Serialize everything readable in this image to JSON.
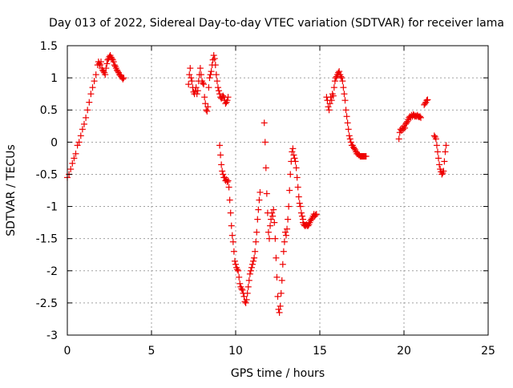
{
  "chart_data": {
    "type": "scatter",
    "title": "Day 013 of 2022, Sidereal Day-to-day VTEC variation (SDTVAR) for receiver lama",
    "xlabel": "GPS time / hours",
    "ylabel": "SDTVAR / TECUs",
    "xlim": [
      0,
      25
    ],
    "ylim": [
      -3,
      1.5
    ],
    "xticks": [
      0,
      5,
      10,
      15,
      20,
      25
    ],
    "xtick_labels": [
      "0",
      "5",
      "10",
      "15",
      "20",
      "25"
    ],
    "yticks": [
      -3,
      -2.5,
      -2,
      -1.5,
      -1,
      -0.5,
      0,
      0.5,
      1,
      1.5
    ],
    "ytick_labels": [
      "-3",
      "-2.5",
      "-2",
      "-1.5",
      "-1",
      "-0.5",
      "0",
      "0.5",
      "1",
      "1.5"
    ],
    "grid": true,
    "marker": "+",
    "marker_color": "#ee0000",
    "series": [
      {
        "name": "SDTVAR",
        "segments": [
          {
            "x": [
              0.0,
              0.1,
              0.2,
              0.3,
              0.4,
              0.5,
              0.6,
              0.7,
              0.8,
              0.9,
              1.0,
              1.1,
              1.2,
              1.3,
              1.4,
              1.5,
              1.6,
              1.7,
              1.8,
              1.85,
              1.9,
              1.95,
              2.0,
              2.05,
              2.1,
              2.15,
              2.2,
              2.25,
              2.3,
              2.35,
              2.4,
              2.45,
              2.5,
              2.55,
              2.6,
              2.65,
              2.7,
              2.75,
              2.8,
              2.85,
              2.9,
              2.95,
              3.0,
              3.05,
              3.1,
              3.15,
              3.2,
              3.25,
              3.3,
              3.35
            ],
            "y": [
              -0.55,
              -0.5,
              -0.42,
              -0.33,
              -0.25,
              -0.18,
              -0.05,
              0.0,
              0.1,
              0.2,
              0.28,
              0.38,
              0.5,
              0.62,
              0.75,
              0.85,
              0.95,
              1.05,
              1.2,
              1.25,
              1.22,
              1.2,
              1.25,
              1.15,
              1.12,
              1.1,
              1.08,
              1.05,
              1.15,
              1.22,
              1.28,
              1.3,
              1.33,
              1.35,
              1.32,
              1.3,
              1.28,
              1.25,
              1.2,
              1.18,
              1.15,
              1.12,
              1.1,
              1.08,
              1.05,
              1.04,
              1.02,
              1.0,
              0.98,
              1.0
            ]
          },
          {
            "x": [
              7.2,
              7.25,
              7.3,
              7.35,
              7.4,
              7.45,
              7.5,
              7.55,
              7.6,
              7.65,
              7.7,
              7.75,
              7.8,
              7.85,
              7.9,
              7.95,
              8.0,
              8.05,
              8.1,
              8.15,
              8.2,
              8.25,
              8.3,
              8.35,
              8.4,
              8.45,
              8.5,
              8.55,
              8.6,
              8.65,
              8.7,
              8.75,
              8.8,
              8.85,
              8.9,
              8.95,
              9.0,
              9.05,
              9.1,
              9.15,
              9.2,
              9.25,
              9.3,
              9.35,
              9.4,
              9.45,
              9.5,
              9.55
            ],
            "y": [
              0.9,
              1.05,
              1.15,
              1.0,
              0.95,
              0.85,
              0.78,
              0.75,
              0.8,
              0.85,
              0.75,
              0.8,
              0.95,
              1.05,
              1.15,
              1.05,
              0.95,
              0.92,
              0.9,
              0.7,
              0.6,
              0.5,
              0.48,
              0.55,
              0.85,
              1.0,
              1.05,
              1.1,
              1.2,
              1.28,
              1.35,
              1.3,
              1.2,
              1.05,
              0.95,
              0.85,
              0.8,
              0.75,
              0.7,
              0.68,
              0.7,
              0.72,
              0.7,
              0.65,
              0.6,
              0.62,
              0.65,
              0.7
            ]
          },
          {
            "x": [
              9.05,
              9.1,
              9.15,
              9.2,
              9.25,
              9.3,
              9.35,
              9.4,
              9.45,
              9.5,
              9.55,
              9.6,
              9.65,
              9.7,
              9.75,
              9.8,
              9.85,
              9.9,
              9.95,
              10.0,
              10.05,
              10.1,
              10.15,
              10.2,
              10.25,
              10.3,
              10.35,
              10.4,
              10.45,
              10.5,
              10.55,
              10.6,
              10.65,
              10.7,
              10.75,
              10.8,
              10.85,
              10.9,
              10.95,
              11.0,
              11.05,
              11.1,
              11.15,
              11.2,
              11.25,
              11.3,
              11.35,
              11.4,
              11.45
            ],
            "y": [
              -0.05,
              -0.2,
              -0.35,
              -0.45,
              -0.5,
              -0.55,
              -0.55,
              -0.6,
              -0.58,
              -0.62,
              -0.6,
              -0.7,
              -0.9,
              -1.1,
              -1.3,
              -1.45,
              -1.55,
              -1.7,
              -1.85,
              -1.9,
              -1.95,
              -1.98,
              -2.0,
              -2.1,
              -2.2,
              -2.25,
              -2.28,
              -2.3,
              -2.35,
              -2.4,
              -2.48,
              -2.5,
              -2.45,
              -2.35,
              -2.25,
              -2.15,
              -2.05,
              -2.0,
              -1.95,
              -1.9,
              -1.85,
              -1.8,
              -1.7,
              -1.55,
              -1.4,
              -1.2,
              -1.05,
              -0.9,
              -0.78
            ]
          },
          {
            "x": [
              11.7,
              11.75,
              11.8,
              11.85,
              11.9,
              11.95,
              12.0,
              12.05,
              12.1,
              12.15,
              12.2,
              12.25,
              12.3,
              12.35,
              12.4,
              12.45,
              12.5,
              12.55,
              12.6,
              12.65,
              12.7,
              12.75,
              12.8,
              12.85,
              12.9,
              12.95,
              13.0,
              13.05,
              13.1,
              13.15,
              13.2,
              13.25,
              13.3,
              13.35,
              13.4,
              13.45,
              13.5,
              13.55,
              13.6,
              13.65,
              13.7,
              13.75,
              13.8,
              13.85,
              13.9,
              13.95,
              14.0
            ],
            "y": [
              0.3,
              0.0,
              -0.4,
              -0.8,
              -1.1,
              -1.4,
              -1.5,
              -1.3,
              -1.2,
              -1.1,
              -1.15,
              -1.05,
              -1.25,
              -1.5,
              -1.8,
              -2.1,
              -2.4,
              -2.6,
              -2.65,
              -2.55,
              -2.35,
              -2.15,
              -1.9,
              -1.7,
              -1.55,
              -1.4,
              -1.45,
              -1.35,
              -1.2,
              -1.0,
              -0.75,
              -0.5,
              -0.3,
              -0.15,
              -0.1,
              -0.2,
              -0.25,
              -0.3,
              -0.4,
              -0.55,
              -0.7,
              -0.85,
              -0.95,
              -1.0,
              -1.1,
              -1.15,
              -1.2
            ]
          },
          {
            "x": [
              14.0,
              14.05,
              14.1,
              14.15,
              14.2,
              14.25,
              14.3,
              14.35,
              14.4,
              14.45,
              14.5,
              14.55,
              14.6,
              14.65,
              14.7,
              14.75,
              14.8
            ],
            "y": [
              -1.25,
              -1.28,
              -1.3,
              -1.3,
              -1.28,
              -1.3,
              -1.3,
              -1.28,
              -1.25,
              -1.22,
              -1.2,
              -1.18,
              -1.15,
              -1.12,
              -1.15,
              -1.13,
              -1.12
            ]
          },
          {
            "x": [
              15.4,
              15.45,
              15.5,
              15.55,
              15.6,
              15.65,
              15.7,
              15.75,
              15.8,
              15.85,
              15.9,
              15.95,
              16.0,
              16.05,
              16.1,
              16.15,
              16.2,
              16.25,
              16.3,
              16.35,
              16.4,
              16.45,
              16.5,
              16.55,
              16.6,
              16.65,
              16.7,
              16.75,
              16.8,
              16.85,
              16.9,
              16.95,
              17.0,
              17.05,
              17.1,
              17.15,
              17.2,
              17.25,
              17.3,
              17.35,
              17.4,
              17.45,
              17.5,
              17.55,
              17.6,
              17.65,
              17.7,
              17.75
            ],
            "y": [
              0.7,
              0.65,
              0.55,
              0.5,
              0.6,
              0.7,
              0.65,
              0.75,
              0.72,
              0.85,
              0.95,
              1.0,
              1.02,
              1.05,
              1.08,
              1.1,
              1.05,
              1.02,
              1.0,
              0.95,
              0.85,
              0.75,
              0.65,
              0.5,
              0.4,
              0.3,
              0.2,
              0.1,
              0.05,
              0.0,
              -0.05,
              -0.05,
              -0.08,
              -0.1,
              -0.12,
              -0.15,
              -0.18,
              -0.18,
              -0.2,
              -0.2,
              -0.22,
              -0.22,
              -0.22,
              -0.22,
              -0.22,
              -0.22,
              -0.22,
              -0.22
            ]
          },
          {
            "x": [
              19.7,
              19.75,
              19.8,
              19.85,
              19.9,
              19.95,
              20.0,
              20.05,
              20.1,
              20.15,
              20.2,
              20.25,
              20.3,
              20.35,
              20.4,
              20.45,
              20.5,
              20.55,
              20.6,
              20.65,
              20.7,
              20.75,
              20.8,
              20.85,
              20.9,
              20.95,
              21.0
            ],
            "y": [
              0.05,
              0.15,
              0.2,
              0.18,
              0.22,
              0.2,
              0.25,
              0.22,
              0.28,
              0.3,
              0.32,
              0.35,
              0.38,
              0.4,
              0.38,
              0.42,
              0.4,
              0.43,
              0.42,
              0.4,
              0.41,
              0.4,
              0.42,
              0.4,
              0.39,
              0.4,
              0.38
            ]
          },
          {
            "x": [
              21.2,
              21.25,
              21.3,
              21.35,
              21.4
            ],
            "y": [
              0.58,
              0.6,
              0.62,
              0.65,
              0.66
            ]
          },
          {
            "x": [
              21.8,
              21.85,
              21.9,
              21.95,
              22.0,
              22.05,
              22.1,
              22.15,
              22.2,
              22.25,
              22.3,
              22.35,
              22.4,
              22.45,
              22.5
            ],
            "y": [
              0.1,
              0.08,
              0.05,
              -0.05,
              -0.15,
              -0.25,
              -0.35,
              -0.42,
              -0.46,
              -0.5,
              -0.48,
              -0.45,
              -0.3,
              -0.15,
              -0.05
            ]
          }
        ]
      }
    ]
  }
}
